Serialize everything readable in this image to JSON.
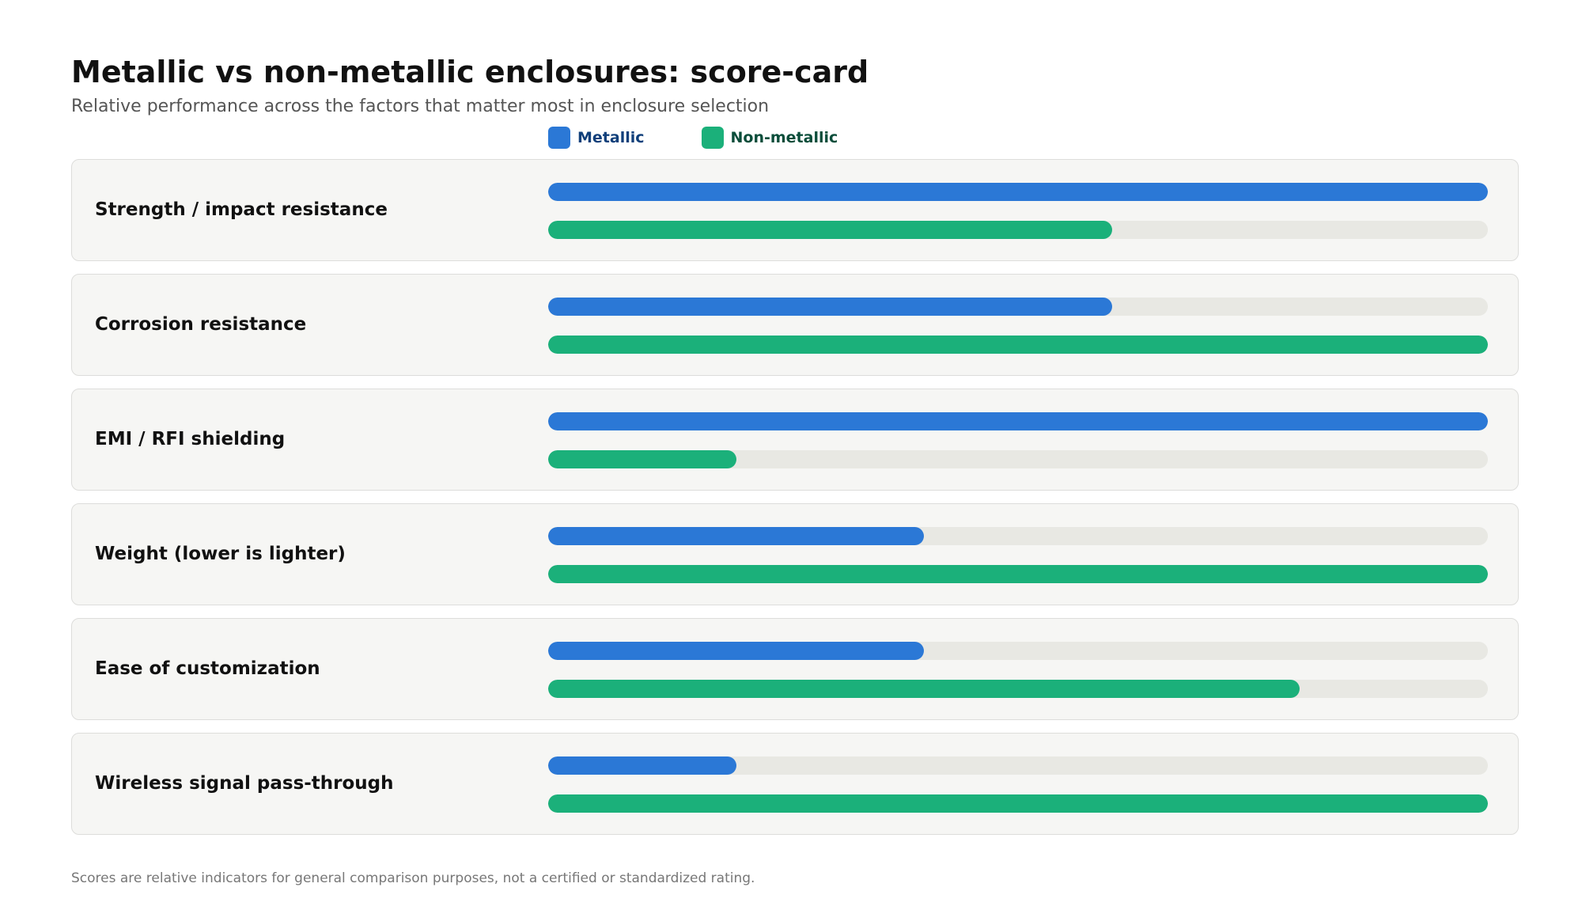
{
  "chart_data": {
    "type": "bar",
    "title": "Metallic vs non-metallic enclosures: score-card",
    "subtitle": "Relative performance across the factors that matter most in enclosure selection",
    "categories": [
      "Strength / impact resistance",
      "Corrosion resistance",
      "EMI / RFI shielding",
      "Weight (lower is lighter)",
      "Ease of customization",
      "Wireless signal pass-through"
    ],
    "series": [
      {
        "name": "Metallic",
        "color": "#2b78d6",
        "label_color": "#103f7a",
        "values": [
          5,
          3,
          5,
          2,
          2,
          1
        ]
      },
      {
        "name": "Non-metallic",
        "color": "#1bb07a",
        "label_color": "#0b4d3a",
        "values": [
          3,
          5,
          1,
          5,
          4,
          5
        ]
      }
    ],
    "ylim": [
      0,
      5
    ],
    "legend": "top",
    "orientation": "horizontal",
    "footnote": "Scores are relative indicators for general comparison purposes, not a certified or standardized rating."
  }
}
